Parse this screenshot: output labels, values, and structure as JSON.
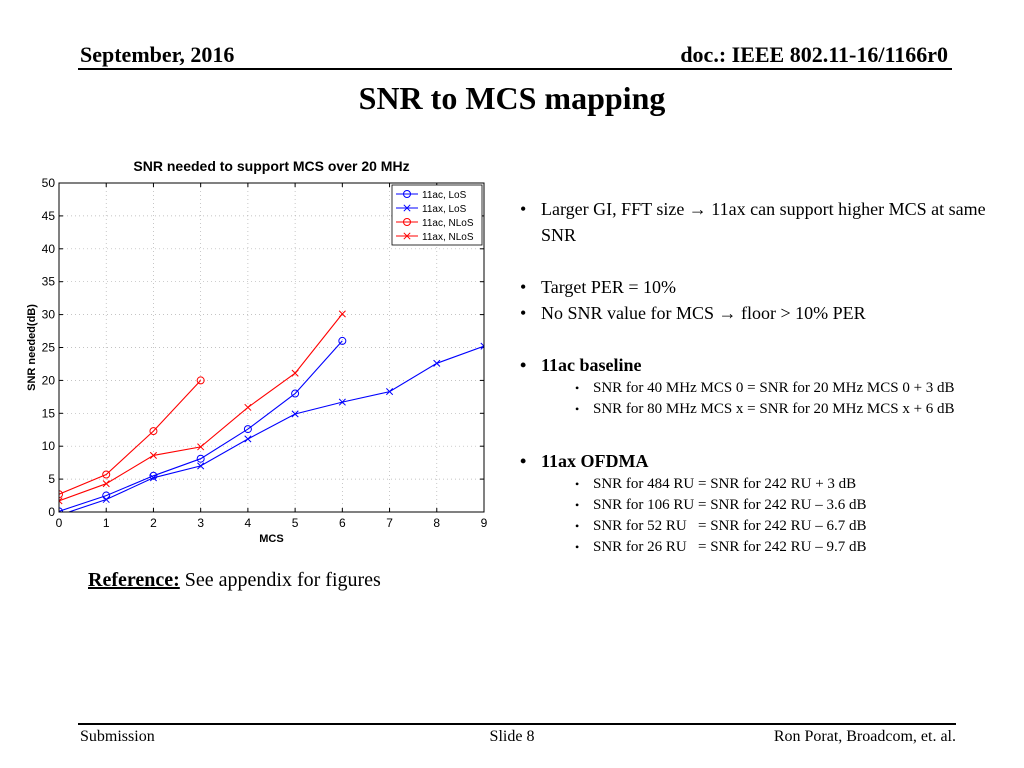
{
  "header": {
    "date": "September, 2016",
    "doc": "doc.: IEEE 802.11-16/1166r0"
  },
  "slide_title": "SNR to MCS mapping",
  "bullets": {
    "b1": "Larger GI, FFT size → 11ax can support higher MCS at same SNR",
    "b2": "Target PER = 10%",
    "b3": "No SNR value for MCS → floor > 10% PER",
    "b4": "11ac baseline",
    "b4_sub": [
      "SNR for 40 MHz MCS 0 = SNR for 20 MHz MCS 0 + 3 dB",
      "SNR for 80 MHz MCS x = SNR for 20 MHz MCS x + 6 dB"
    ],
    "b5": "11ax OFDMA",
    "b5_sub": [
      "SNR for 484 RU = SNR for 242 RU + 3 dB",
      "SNR for 106 RU = SNR for 242 RU – 3.6 dB",
      "SNR for 52 RU   = SNR for 242 RU – 6.7 dB",
      "SNR for 26 RU   = SNR for 242 RU – 9.7 dB"
    ]
  },
  "reference": {
    "label": "Reference:",
    "text": " See appendix for figures"
  },
  "footer": {
    "left": "Submission",
    "center": "Slide 8",
    "right": "Ron Porat, Broadcom, et. al."
  },
  "chart_data": {
    "type": "line",
    "title": "SNR needed to support MCS over 20 MHz",
    "xlabel": "MCS",
    "ylabel": "SNR needed(dB)",
    "xlim": [
      0,
      9
    ],
    "ylim": [
      0,
      50
    ],
    "xticks": [
      0,
      1,
      2,
      3,
      4,
      5,
      6,
      7,
      8,
      9
    ],
    "yticks": [
      0,
      5,
      10,
      15,
      20,
      25,
      30,
      35,
      40,
      45,
      50
    ],
    "grid": true,
    "legend_position": "top-right",
    "series": [
      {
        "name": "11ac, LoS",
        "color": "#0000ff",
        "marker": "circle",
        "x": [
          0,
          1,
          2,
          3,
          4,
          5,
          6
        ],
        "y": [
          0.1,
          2.5,
          5.5,
          8.1,
          12.6,
          18.0,
          26.0
        ]
      },
      {
        "name": "11ax, LoS",
        "color": "#0000ff",
        "marker": "x",
        "x": [
          0,
          1,
          2,
          3,
          4,
          5,
          6,
          7,
          8,
          9
        ],
        "y": [
          -0.5,
          1.9,
          5.2,
          7.0,
          11.1,
          14.9,
          16.7,
          18.3,
          22.6,
          25.2
        ]
      },
      {
        "name": "11ac, NLoS",
        "color": "#ff0000",
        "marker": "circle",
        "x": [
          0,
          1,
          2,
          3
        ],
        "y": [
          2.7,
          5.7,
          12.3,
          20.0
        ]
      },
      {
        "name": "11ax, NLoS",
        "color": "#ff0000",
        "marker": "x",
        "x": [
          0,
          1,
          2,
          3,
          4,
          5,
          6
        ],
        "y": [
          1.7,
          4.3,
          8.6,
          9.9,
          15.9,
          21.1,
          30.1
        ]
      }
    ]
  }
}
